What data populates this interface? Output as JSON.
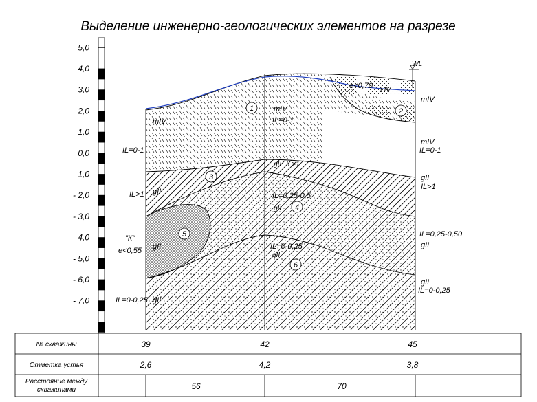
{
  "title": "Выделение инженерно-геологических элементов на разрезе",
  "scale": {
    "ticks": [
      {
        "value": 5.0,
        "label": "5,0"
      },
      {
        "value": 4.0,
        "label": "4,0"
      },
      {
        "value": 3.0,
        "label": "3,0"
      },
      {
        "value": 2.0,
        "label": "2,0"
      },
      {
        "value": 1.0,
        "label": "1,0"
      },
      {
        "value": 0.0,
        "label": "0,0"
      },
      {
        "value": -1.0,
        "label": "- 1,0"
      },
      {
        "value": -2.0,
        "label": "- 2,0"
      },
      {
        "value": -3.0,
        "label": "- 3,0"
      },
      {
        "value": -4.0,
        "label": "- 4,0"
      },
      {
        "value": -5.0,
        "label": "- 5,0"
      },
      {
        "value": -6.0,
        "label": "- 6,0"
      },
      {
        "value": -7.0,
        "label": "- 7,0"
      }
    ]
  },
  "elements": [
    {
      "number": "1"
    },
    {
      "number": "2"
    },
    {
      "number": "3"
    },
    {
      "number": "4"
    },
    {
      "number": "5"
    },
    {
      "number": "6"
    }
  ],
  "annotations": {
    "e070": "e<0,70",
    "tIV": "t IV",
    "mIV_top": "mIV",
    "mIV_left": "mIV",
    "mIV_right_top": "mIV",
    "il01_center": "IL=0-1",
    "mIV_right": "mIV",
    "il01_right": "IL=0-1",
    "il01_left": "IL=0-1",
    "gII_center_top": "gII",
    "il_gt1_center": "IL>1",
    "gII_left_top": "gII",
    "il_gt1_left": "IL>1",
    "gII_right_top": "gII",
    "il_gt1_right": "IL>1",
    "il025_05_center": "IL=0,25-0,5",
    "gII_center_mid": "gII",
    "il025_05_right": "IL=0,25-0,50",
    "gII_right_mid": "gII",
    "k_label": "\"К\"",
    "e055": "e<0,55",
    "gII_k": "gII",
    "il0025_center": "IL=0-0,25",
    "gII_center_low": "gII",
    "gII_right_low": "gII",
    "il0025_right": "IL=0-0,25",
    "il0025_left": "IL=0-0,25",
    "gII_left_low": "gII",
    "wl": "WL"
  },
  "table": {
    "rows": [
      {
        "header": "№ скважины",
        "values": [
          "39",
          "42",
          "45"
        ]
      },
      {
        "header": "Отметка устья",
        "values": [
          "2,6",
          "4,2",
          "3,8"
        ]
      },
      {
        "header": "Расстояние между скважинами",
        "values": [
          "56",
          "70"
        ]
      }
    ]
  },
  "colors": {
    "groundwater": "#1f3fbf",
    "ink": "#000000"
  }
}
